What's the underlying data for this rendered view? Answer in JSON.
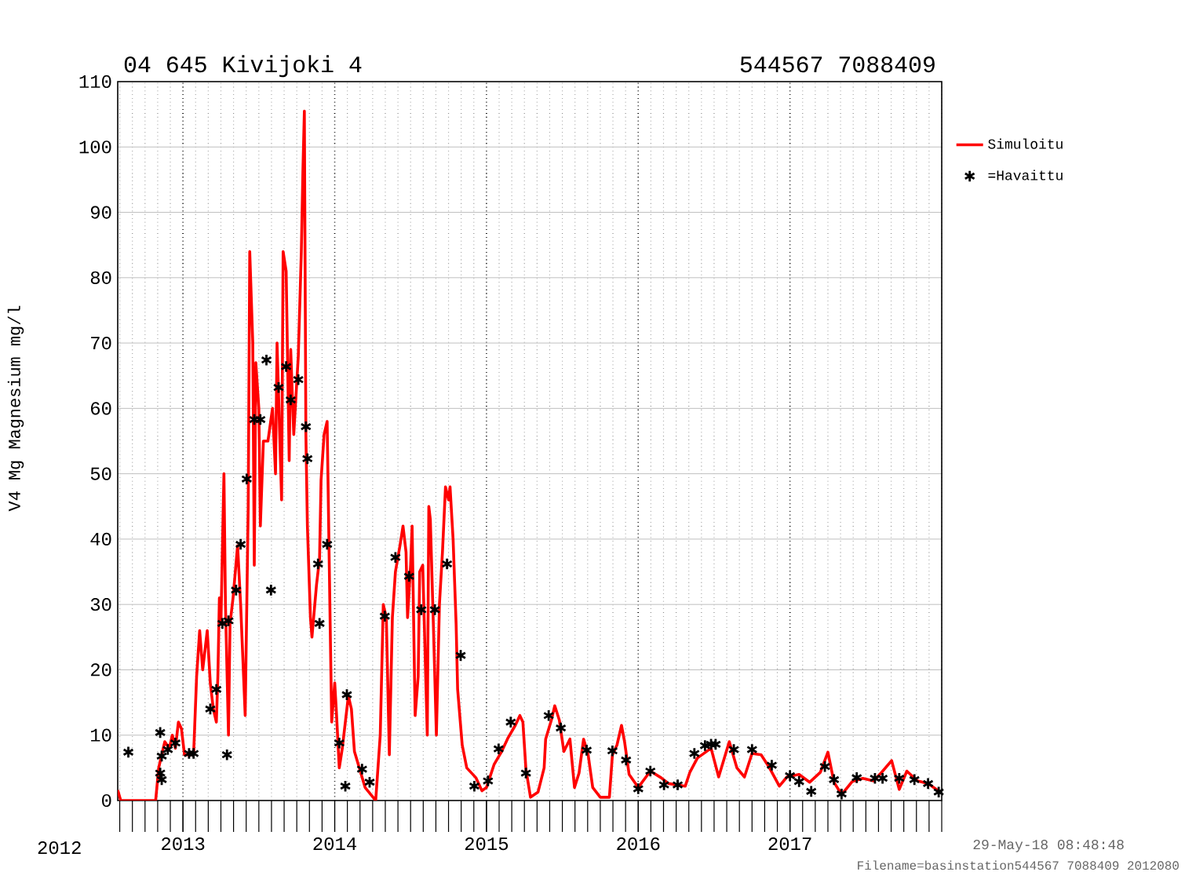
{
  "chart_data": {
    "type": "line",
    "title": "04 645 Kivijoki 4",
    "subtitle": "544567 7088409",
    "ylabel": "V4 Mg Magnesium mg/l",
    "annotations": [
      "2012",
      "29-May-18 08:48:48",
      "Filename=basinstation544567 7088409 2012080"
    ],
    "xlim": [
      2012.57,
      2018.0
    ],
    "xticks": [
      2013,
      2014,
      2015,
      2016,
      2017
    ],
    "ylim": [
      0,
      110
    ],
    "yticks": [
      0,
      10,
      20,
      30,
      40,
      50,
      60,
      70,
      80,
      90,
      100,
      110
    ],
    "grid": true,
    "legend": "right",
    "series": [
      {
        "name": "Simuloitu",
        "color": "#ff0000",
        "marker": "none",
        "x": [
          2012.57,
          2012.59,
          2012.82,
          2012.84,
          2012.88,
          2012.91,
          2012.93,
          2012.95,
          2012.97,
          2012.99,
          2013.01,
          2013.05,
          2013.07,
          2013.09,
          2013.11,
          2013.13,
          2013.16,
          2013.18,
          2013.2,
          2013.22,
          2013.23,
          2013.24,
          2013.25,
          2013.27,
          2013.28,
          2013.3,
          2013.31,
          2013.33,
          2013.36,
          2013.38,
          2013.41,
          2013.43,
          2013.44,
          2013.46,
          2013.47,
          2013.48,
          2013.5,
          2013.51,
          2013.53,
          2013.56,
          2013.59,
          2013.61,
          2013.62,
          2013.65,
          2013.66,
          2013.68,
          2013.7,
          2013.71,
          2013.73,
          2013.76,
          2013.78,
          2013.79,
          2013.8,
          2013.81,
          2013.82,
          2013.84,
          2013.85,
          2013.88,
          2013.9,
          2013.91,
          2013.93,
          2013.95,
          2013.97,
          2013.98,
          2014.0,
          2014.01,
          2014.03,
          2014.05,
          2014.09,
          2014.11,
          2014.13,
          2014.2,
          2014.27,
          2014.3,
          2014.32,
          2014.34,
          2014.36,
          2014.38,
          2014.4,
          2014.43,
          2014.45,
          2014.47,
          2014.48,
          2014.5,
          2014.51,
          2014.53,
          2014.55,
          2014.56,
          2014.58,
          2014.61,
          2014.62,
          2014.63,
          2014.65,
          2014.67,
          2014.69,
          2014.71,
          2014.73,
          2014.75,
          2014.76,
          2014.78,
          2014.8,
          2014.81,
          2014.84,
          2014.87,
          2014.93,
          2014.97,
          2015.0,
          2015.05,
          2015.1,
          2015.14,
          2015.19,
          2015.22,
          2015.24,
          2015.26,
          2015.29,
          2015.34,
          2015.38,
          2015.39,
          2015.43,
          2015.45,
          2015.48,
          2015.51,
          2015.55,
          2015.58,
          2015.61,
          2015.64,
          2015.67,
          2015.7,
          2015.75,
          2015.81,
          2015.83,
          2015.86,
          2015.89,
          2015.91,
          2015.94,
          2016.0,
          2016.08,
          2016.15,
          2016.2,
          2016.31,
          2016.34,
          2016.39,
          2016.48,
          2016.53,
          2016.6,
          2016.65,
          2016.7,
          2016.75,
          2016.81,
          2016.86,
          2016.93,
          2016.98,
          2017.06,
          2017.13,
          2017.2,
          2017.25,
          2017.29,
          2017.34,
          2017.41,
          2017.48,
          2017.55,
          2017.6,
          2017.67,
          2017.72,
          2017.77,
          2017.84,
          2017.91,
          2017.99
        ],
        "values": [
          1.6,
          0,
          0,
          5,
          9,
          8,
          10,
          8,
          12,
          11,
          7,
          7,
          7,
          19,
          26,
          20,
          26,
          18,
          14,
          12,
          19,
          31,
          27,
          50,
          30,
          10,
          27,
          31,
          39,
          30,
          13,
          45,
          84,
          70,
          36,
          67,
          60,
          42,
          55,
          55,
          60,
          50,
          70,
          46,
          84,
          81,
          52,
          69,
          56,
          68,
          84,
          96,
          105.5,
          56,
          42,
          28,
          25,
          33,
          37,
          49,
          56,
          58,
          27,
          12,
          18,
          14,
          5,
          8,
          16,
          14,
          7.5,
          2,
          0,
          10,
          30,
          28,
          7,
          28,
          35,
          39,
          42,
          38,
          28,
          36,
          42,
          13,
          19,
          35,
          36,
          10,
          45,
          43,
          27,
          10,
          30,
          38,
          48,
          46,
          48,
          40,
          27,
          17,
          8.5,
          5,
          3.5,
          1.5,
          2,
          5.5,
          7.5,
          9.5,
          11.5,
          13,
          12,
          4.8,
          0.5,
          1.3,
          5,
          9.4,
          12.5,
          14.5,
          12.3,
          7.5,
          9.4,
          2,
          4.2,
          9.4,
          7,
          2,
          0.5,
          0.5,
          7,
          8.5,
          11.5,
          9,
          4,
          2,
          4.5,
          3.5,
          2.6,
          2.2,
          4.3,
          6.5,
          8,
          3.6,
          9,
          5,
          3.6,
          7.2,
          7,
          5.2,
          2.2,
          3.6,
          4,
          2.8,
          4.3,
          7.4,
          2.8,
          0.9,
          2.9,
          3.4,
          3,
          4.2,
          6.1,
          1.7,
          4.5,
          3,
          2.6,
          1.3
        ]
      },
      {
        "name": "=Havaittu",
        "type": "scatter",
        "color": "#000000",
        "marker": "cross",
        "x": [
          2012.64,
          2012.85,
          2012.86,
          2012.85,
          2012.86,
          2012.9,
          2012.95,
          2013.04,
          2013.07,
          2013.18,
          2013.22,
          2013.26,
          2013.3,
          2013.29,
          2013.35,
          2013.38,
          2013.42,
          2013.47,
          2013.51,
          2013.55,
          2013.58,
          2013.63,
          2013.68,
          2013.71,
          2013.76,
          2013.81,
          2013.82,
          2013.89,
          2013.9,
          2013.95,
          2014.03,
          2014.07,
          2014.08,
          2014.18,
          2014.23,
          2014.33,
          2014.4,
          2014.49,
          2014.57,
          2014.66,
          2014.74,
          2014.83,
          2014.92,
          2015.01,
          2015.08,
          2015.16,
          2015.26,
          2015.41,
          2015.49,
          2015.66,
          2015.83,
          2015.92,
          2016.0,
          2016.08,
          2016.17,
          2016.26,
          2016.37,
          2016.44,
          2016.48,
          2016.51,
          2016.63,
          2016.75,
          2016.88,
          2017.0,
          2017.06,
          2017.14,
          2017.23,
          2017.29,
          2017.34,
          2017.44,
          2017.56,
          2017.61,
          2017.72,
          2017.82,
          2017.91,
          2017.98
        ],
        "values": [
          7.4,
          4.2,
          3.2,
          10.4,
          6.8,
          7.8,
          8.8,
          7.2,
          7.2,
          14,
          17,
          27.1,
          27.5,
          7,
          32.2,
          39.2,
          49.2,
          58.3,
          58.3,
          67.4,
          32.2,
          63.2,
          66.4,
          61.3,
          64.4,
          57.2,
          52.3,
          36.2,
          27.1,
          39.2,
          8.8,
          2.2,
          16.2,
          4.8,
          2.8,
          28.2,
          37.2,
          34.3,
          29.2,
          29.2,
          36.2,
          22.2,
          2.2,
          3,
          7.9,
          12,
          4.2,
          13,
          11.1,
          7.7,
          7.6,
          6.2,
          1.8,
          4.5,
          2.4,
          2.4,
          7.2,
          8.4,
          8.6,
          8.6,
          7.8,
          7.8,
          5.4,
          3.8,
          2.9,
          1.4,
          5.2,
          3.2,
          1,
          3.5,
          3.4,
          3.4,
          3.4,
          3.2,
          2.6,
          1.3
        ]
      }
    ]
  }
}
